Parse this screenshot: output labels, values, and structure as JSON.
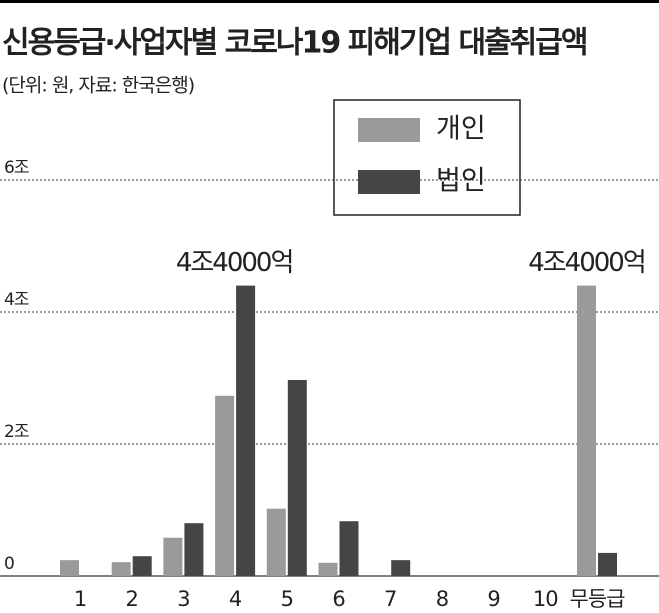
{
  "chart_data": {
    "type": "bar",
    "title": "신용등급·사업자별 코로나19 피해기업 대출취급액",
    "subtitle": "(단위: 원, 자료: 한국은행)",
    "categories": [
      "1",
      "2",
      "3",
      "4",
      "5",
      "6",
      "7",
      "8",
      "9",
      "10",
      "무등급"
    ],
    "series": [
      {
        "name": "개인",
        "color": "#9a9a9a",
        "values": [
          0.24,
          0.21,
          0.58,
          2.73,
          1.02,
          0.2,
          0,
          0,
          0,
          0,
          4.4
        ],
        "value_labels": [
          null,
          null,
          null,
          null,
          null,
          null,
          null,
          null,
          null,
          null,
          "4조4000억"
        ]
      },
      {
        "name": "법인",
        "color": "#454545",
        "values": [
          0,
          0.3,
          0.8,
          4.4,
          2.97,
          0.83,
          0.24,
          0,
          0,
          0,
          0.35
        ],
        "value_labels": [
          null,
          null,
          null,
          "4조4000억",
          null,
          null,
          null,
          null,
          null,
          null,
          null
        ]
      }
    ],
    "ylim": [
      0,
      6
    ],
    "yticks": [
      0,
      {
        "value": 2,
        "label": "2조"
      },
      {
        "value": 4,
        "label": "4조"
      },
      {
        "value": 6,
        "label": "6조"
      }
    ],
    "grid": true,
    "legend": "top-right"
  }
}
